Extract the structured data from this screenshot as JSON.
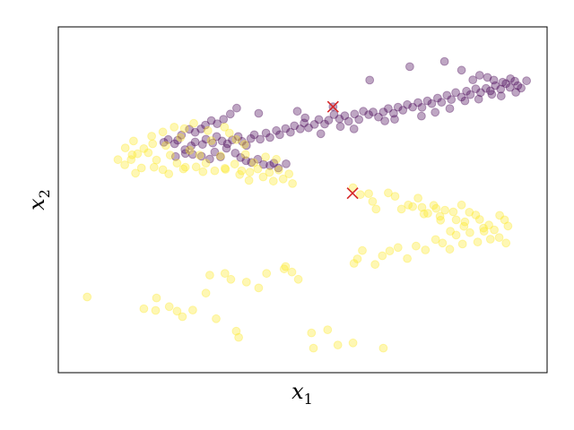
{
  "chart_data": {
    "type": "scatter",
    "title": "",
    "xlabel_main": "x",
    "xlabel_sub": "1",
    "ylabel_main": "x",
    "ylabel_sub": "2",
    "xlim": [
      0,
      100
    ],
    "ylim": [
      0,
      100
    ],
    "xticks": [],
    "yticks": [],
    "grid": false,
    "legend": "none",
    "colors": {
      "purple": "#440154",
      "yellow": "#fde725",
      "centroid": "#d62728"
    },
    "series": [
      {
        "color": "purple",
        "alpha": 0.35,
        "points": [
          [
            25.9,
            64.5
          ],
          [
            27.2,
            65.6
          ],
          [
            28.0,
            66.7
          ],
          [
            29.5,
            66.0
          ],
          [
            30.2,
            67.5
          ],
          [
            31.6,
            66.4
          ],
          [
            32.4,
            68.3
          ],
          [
            33.5,
            67.0
          ],
          [
            34.6,
            66.2
          ],
          [
            35.6,
            67.3
          ],
          [
            36.8,
            68.3
          ],
          [
            37.6,
            66.9
          ],
          [
            38.5,
            65.7
          ],
          [
            39.4,
            67.7
          ],
          [
            40.1,
            68.8
          ],
          [
            41.3,
            67.5
          ],
          [
            42.5,
            69.3
          ],
          [
            43.3,
            68.0
          ],
          [
            44.6,
            70.0
          ],
          [
            45.3,
            68.8
          ],
          [
            46.5,
            70.6
          ],
          [
            47.5,
            69.5
          ],
          [
            48.3,
            71.4
          ],
          [
            49.5,
            70.5
          ],
          [
            50.3,
            72.2
          ],
          [
            51.2,
            70.8
          ],
          [
            52.4,
            71.8
          ],
          [
            53.3,
            73.2
          ],
          [
            54.5,
            71.9
          ],
          [
            55.3,
            73.0
          ],
          [
            56.4,
            74.6
          ],
          [
            57.5,
            73.4
          ],
          [
            58.6,
            74.3
          ],
          [
            59.4,
            72.7
          ],
          [
            60.6,
            74.8
          ],
          [
            61.5,
            73.2
          ],
          [
            62.4,
            75.6
          ],
          [
            63.5,
            74.6
          ],
          [
            64.4,
            75.4
          ],
          [
            65.5,
            73.9
          ],
          [
            66.5,
            75.4
          ],
          [
            67.5,
            76.4
          ],
          [
            68.6,
            75.0
          ],
          [
            69.5,
            76.8
          ],
          [
            70.5,
            75.9
          ],
          [
            71.4,
            77.5
          ],
          [
            72.5,
            76.8
          ],
          [
            73.6,
            78.1
          ],
          [
            74.4,
            76.7
          ],
          [
            75.5,
            78.6
          ],
          [
            76.4,
            77.8
          ],
          [
            77.6,
            79.4
          ],
          [
            78.4,
            78.2
          ],
          [
            79.5,
            80.2
          ],
          [
            80.4,
            79.0
          ],
          [
            81.3,
            81.0
          ],
          [
            82.5,
            79.7
          ],
          [
            83.5,
            81.4
          ],
          [
            84.3,
            80.4
          ],
          [
            85.4,
            82.1
          ],
          [
            86.4,
            81.0
          ],
          [
            87.5,
            82.2
          ],
          [
            88.4,
            81.5
          ],
          [
            89.4,
            83.0
          ],
          [
            90.5,
            82.0
          ],
          [
            91.6,
            83.6
          ],
          [
            92.4,
            82.5
          ],
          [
            93.4,
            84.3
          ],
          [
            94.0,
            83.0
          ],
          [
            94.7,
            82.3
          ],
          [
            92.5,
            85.0
          ],
          [
            90.9,
            84.0
          ],
          [
            89.1,
            84.6
          ],
          [
            87.8,
            85.4
          ],
          [
            86.2,
            86.0
          ],
          [
            84.8,
            84.7
          ],
          [
            82.5,
            87.5
          ],
          [
            79.0,
            90.0
          ],
          [
            71.9,
            88.5
          ],
          [
            63.7,
            84.6
          ],
          [
            56.2,
            76.9
          ],
          [
            48.9,
            75.6
          ],
          [
            41.0,
            75.0
          ],
          [
            36.5,
            76.5
          ],
          [
            35.2,
            74.8
          ],
          [
            33.8,
            73.3
          ],
          [
            32.5,
            72.0
          ],
          [
            31.3,
            72.9
          ],
          [
            30.1,
            71.6
          ],
          [
            29.2,
            70.5
          ],
          [
            28.0,
            69.5
          ],
          [
            26.8,
            70.4
          ],
          [
            25.2,
            68.7
          ],
          [
            24.4,
            67.2
          ],
          [
            23.8,
            66.2
          ],
          [
            22.5,
            67.4
          ],
          [
            21.6,
            66.6
          ],
          [
            27.5,
            63.1
          ],
          [
            29.3,
            62.6
          ],
          [
            31.0,
            61.8
          ],
          [
            32.0,
            63.8
          ],
          [
            33.2,
            62.4
          ],
          [
            34.4,
            64.9
          ],
          [
            36.2,
            63.5
          ],
          [
            37.3,
            62.2
          ],
          [
            38.4,
            61.3
          ],
          [
            39.5,
            60.8
          ],
          [
            40.8,
            61.7
          ],
          [
            42.0,
            60.2
          ],
          [
            43.3,
            59.9
          ],
          [
            44.1,
            60.6
          ],
          [
            45.0,
            59.2
          ],
          [
            46.6,
            60.4
          ],
          [
            50.5,
            73.7
          ],
          [
            53.7,
            69.1
          ],
          [
            57.7,
            71.2
          ],
          [
            60.5,
            70.5
          ],
          [
            66.8,
            72.8
          ],
          [
            68.8,
            73.3
          ],
          [
            74.3,
            74.2
          ],
          [
            77.1,
            75.3
          ],
          [
            80.1,
            76.4
          ],
          [
            83.2,
            78.6
          ],
          [
            86.0,
            79.1
          ],
          [
            88.7,
            80.5
          ],
          [
            90.6,
            80.0
          ],
          [
            93.6,
            81.1
          ],
          [
            95.8,
            84.4
          ],
          [
            24.0,
            62.5
          ],
          [
            26.0,
            63.4
          ]
        ]
      },
      {
        "color": "yellow",
        "alpha": 0.35,
        "points": [
          [
            12.2,
            61.6
          ],
          [
            13.7,
            65.0
          ],
          [
            14.9,
            61.6
          ],
          [
            15.4,
            67.0
          ],
          [
            16.2,
            63.3
          ],
          [
            17.0,
            59.2
          ],
          [
            18.4,
            63.6
          ],
          [
            19.1,
            68.4
          ],
          [
            20.1,
            61.5
          ],
          [
            21.4,
            58.7
          ],
          [
            22.0,
            65.7
          ],
          [
            22.9,
            62.9
          ],
          [
            24.3,
            60.6
          ],
          [
            25.0,
            68.0
          ],
          [
            26.0,
            59.4
          ],
          [
            26.9,
            64.3
          ],
          [
            28.2,
            59.5
          ],
          [
            28.9,
            62.9
          ],
          [
            30.2,
            60.6
          ],
          [
            31.3,
            67.1
          ],
          [
            32.0,
            58.4
          ],
          [
            33.2,
            62.7
          ],
          [
            34.2,
            58.8
          ],
          [
            35.0,
            69.3
          ],
          [
            36.1,
            60.3
          ],
          [
            37.1,
            57.3
          ],
          [
            38.3,
            63.1
          ],
          [
            39.2,
            58.0
          ],
          [
            40.0,
            60.7
          ],
          [
            40.8,
            58.9
          ],
          [
            41.9,
            56.6
          ],
          [
            43.2,
            57.9
          ],
          [
            44.0,
            55.4
          ],
          [
            45.1,
            58.6
          ],
          [
            46.0,
            56.0
          ],
          [
            47.2,
            57.5
          ],
          [
            47.9,
            54.7
          ],
          [
            44.6,
            61.7
          ],
          [
            42.4,
            62.4
          ],
          [
            38.1,
            66.0
          ],
          [
            36.4,
            67.4
          ],
          [
            34.0,
            71.0
          ],
          [
            30.6,
            70.0
          ],
          [
            27.7,
            72.1
          ],
          [
            25.8,
            70.6
          ],
          [
            23.7,
            71.0
          ],
          [
            21.4,
            69.6
          ],
          [
            19.3,
            66.2
          ],
          [
            17.5,
            64.8
          ],
          [
            15.1,
            63.0
          ],
          [
            13.6,
            60.1
          ],
          [
            15.8,
            57.7
          ],
          [
            19.6,
            59.4
          ],
          [
            22.6,
            57.5
          ],
          [
            25.6,
            58.9
          ],
          [
            29.6,
            58.1
          ],
          [
            34.1,
            59.1
          ],
          [
            37.5,
            58.4
          ],
          [
            39.0,
            55.6
          ],
          [
            60.3,
            53.5
          ],
          [
            61.8,
            51.5
          ],
          [
            63.5,
            51.8
          ],
          [
            64.3,
            49.5
          ],
          [
            65.0,
            47.3
          ],
          [
            67.5,
            52.0
          ],
          [
            68.9,
            51.0
          ],
          [
            70.2,
            47.3
          ],
          [
            71.6,
            48.5
          ],
          [
            72.5,
            48.0
          ],
          [
            73.6,
            50.5
          ],
          [
            74.4,
            47.8
          ],
          [
            75.6,
            46.1
          ],
          [
            76.8,
            48.4
          ],
          [
            77.3,
            47.5
          ],
          [
            78.1,
            45.2
          ],
          [
            79.1,
            47.0
          ],
          [
            80.8,
            46.5
          ],
          [
            81.4,
            44.2
          ],
          [
            82.5,
            48.5
          ],
          [
            83.2,
            43.6
          ],
          [
            84.1,
            46.4
          ],
          [
            85.4,
            45.6
          ],
          [
            86.2,
            44.3
          ],
          [
            87.0,
            41.8
          ],
          [
            88.1,
            42.7
          ],
          [
            89.2,
            41.3
          ],
          [
            90.3,
            45.5
          ],
          [
            91.3,
            44.2
          ],
          [
            92.0,
            42.4
          ],
          [
            91.6,
            37.5
          ],
          [
            90.2,
            39.1
          ],
          [
            88.4,
            38.6
          ],
          [
            87.1,
            40.9
          ],
          [
            85.8,
            37.8
          ],
          [
            84.2,
            40.5
          ],
          [
            82.7,
            37.2
          ],
          [
            81.4,
            39.8
          ],
          [
            80.1,
            35.7
          ],
          [
            78.6,
            37.5
          ],
          [
            77.2,
            38.5
          ],
          [
            75.1,
            35.5
          ],
          [
            73.2,
            36.6
          ],
          [
            71.4,
            33.0
          ],
          [
            69.5,
            36.2
          ],
          [
            67.8,
            35.2
          ],
          [
            66.3,
            33.8
          ],
          [
            64.8,
            31.3
          ],
          [
            62.2,
            35.3
          ],
          [
            61.2,
            32.9
          ],
          [
            60.5,
            31.6
          ],
          [
            80.2,
            40.9
          ],
          [
            83.0,
            42.3
          ],
          [
            78.2,
            44.1
          ],
          [
            74.8,
            45.9
          ],
          [
            5.9,
            21.9
          ],
          [
            17.5,
            18.5
          ],
          [
            19.9,
            18.0
          ],
          [
            20.1,
            21.6
          ],
          [
            22.7,
            19.1
          ],
          [
            24.3,
            17.8
          ],
          [
            25.4,
            16.2
          ],
          [
            27.5,
            18.1
          ],
          [
            30.2,
            23.0
          ],
          [
            31.0,
            28.2
          ],
          [
            32.3,
            15.6
          ],
          [
            34.1,
            28.7
          ],
          [
            35.3,
            27.0
          ],
          [
            36.4,
            12.0
          ],
          [
            36.9,
            10.2
          ],
          [
            38.5,
            26.2
          ],
          [
            41.0,
            24.5
          ],
          [
            42.6,
            28.7
          ],
          [
            46.2,
            30.0
          ],
          [
            46.5,
            30.7
          ],
          [
            47.8,
            29.1
          ],
          [
            49.1,
            27.0
          ],
          [
            51.8,
            11.5
          ],
          [
            52.2,
            7.1
          ],
          [
            55.1,
            12.4
          ],
          [
            57.2,
            8.0
          ],
          [
            60.3,
            8.6
          ],
          [
            66.5,
            7.1
          ]
        ]
      }
    ],
    "centroids": [
      [
        56.2,
        76.9
      ],
      [
        60.2,
        51.9
      ]
    ]
  }
}
